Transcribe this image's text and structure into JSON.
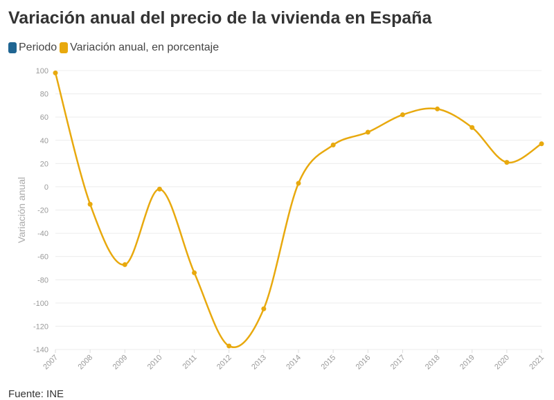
{
  "chart_data": {
    "type": "line",
    "title": "Variación anual del precio de la vivienda en España",
    "legend": [
      {
        "label": "Periodo",
        "color": "#1f6592"
      },
      {
        "label": "Variación anual, en porcentaje",
        "color": "#e8a90e"
      }
    ],
    "legend_placement": "top-left",
    "xlabel": "",
    "ylabel": "Variación anual",
    "categories": [
      "2007",
      "2008",
      "2009",
      "2010",
      "2011",
      "2012",
      "2013",
      "2014",
      "2015",
      "2016",
      "2017",
      "2018",
      "2019",
      "2020",
      "2021"
    ],
    "series": [
      {
        "name": "Variación anual, en porcentaje",
        "values": [
          98,
          -15,
          -67,
          -2,
          -74,
          -137,
          -105,
          3,
          36,
          47,
          62,
          67,
          51,
          21,
          37
        ]
      }
    ],
    "ylim": [
      -140,
      100
    ],
    "yticks": [
      100,
      80,
      60,
      40,
      20,
      0,
      -20,
      -40,
      -60,
      -80,
      -100,
      -120,
      -140
    ],
    "grid": true
  },
  "source": "Fuente: INE"
}
